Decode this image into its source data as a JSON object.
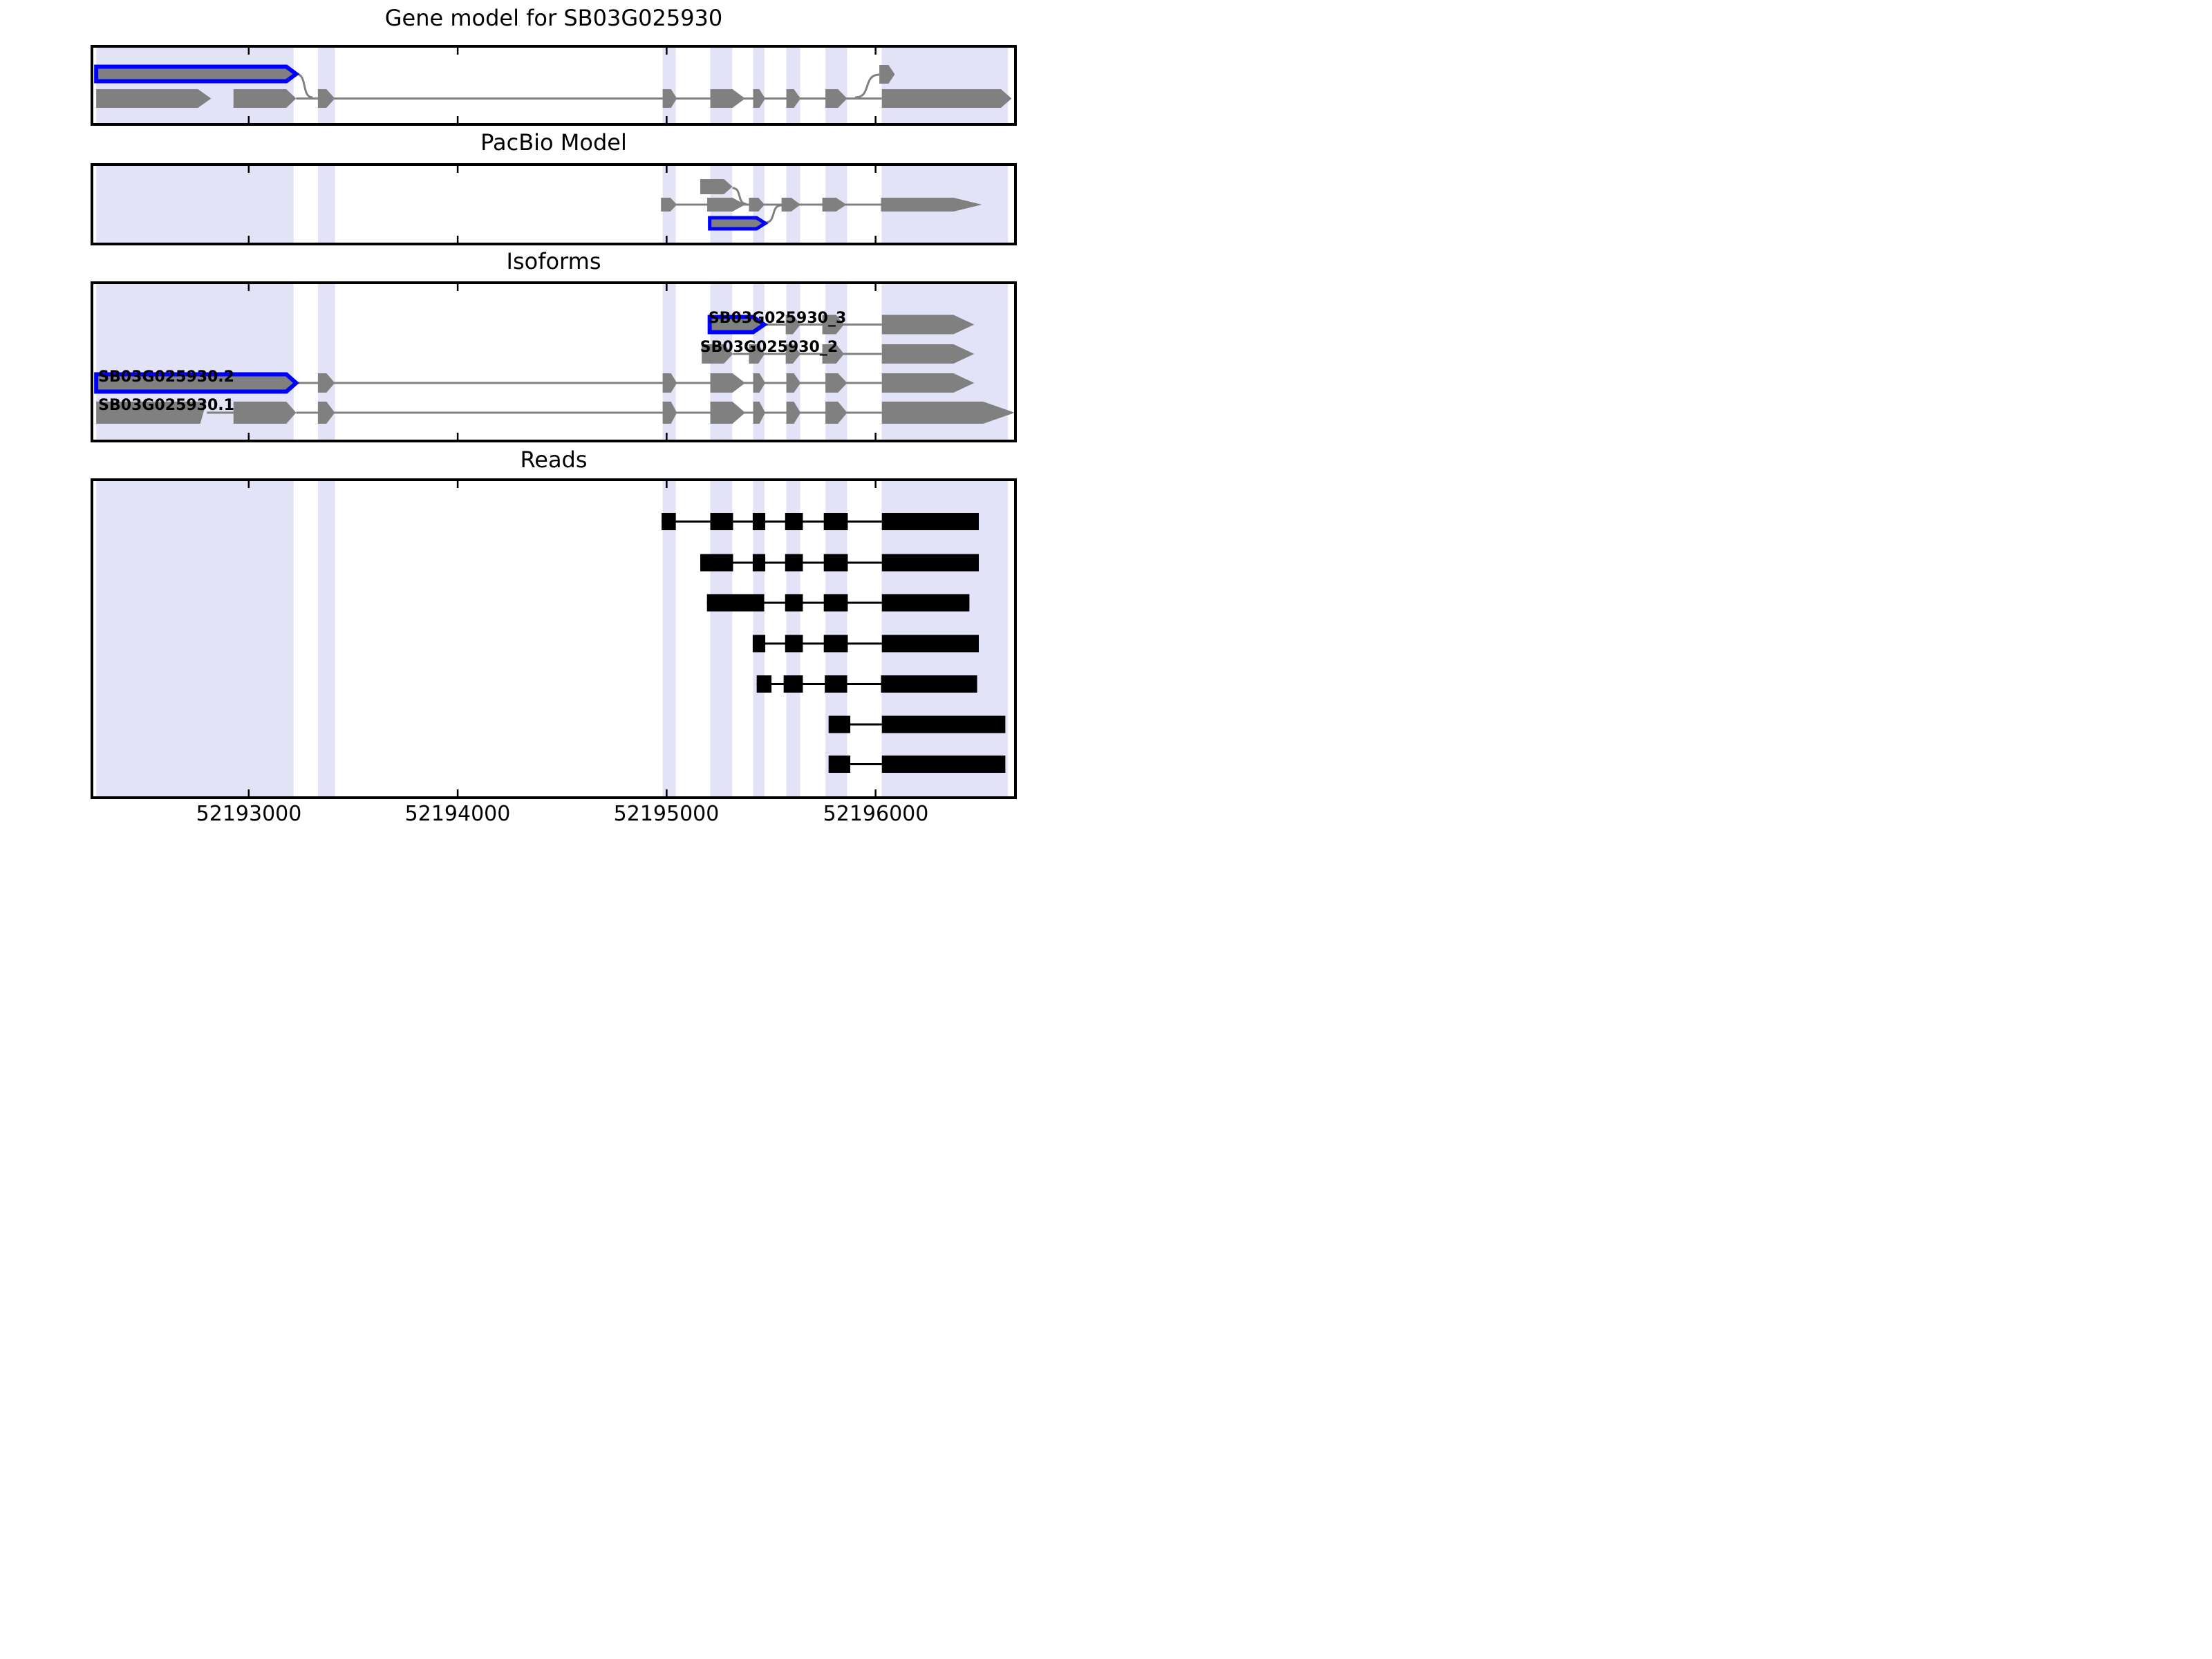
{
  "figure_title": "Gene model for SB03G025930",
  "section_titles": {
    "pacbio": "PacBio Model",
    "isoforms": "Isoforms",
    "reads": "Reads"
  },
  "axis": {
    "tick_labels": [
      "52193000",
      "52194000",
      "52195000",
      "52196000"
    ]
  },
  "colors": {
    "highlight_band": "#e3e3f8",
    "feature_gray": "#808080",
    "accent_blue": "#0000ff",
    "read_black": "#000000",
    "border_black": "#000000"
  },
  "chart_data": {
    "type": "genomic-tracks",
    "title": "Gene model for SB03G025930",
    "x_range": [
      52192243,
      52196676
    ],
    "x_ticks": [
      52193000,
      52194000,
      52195000,
      52196000
    ],
    "highlight_regions": [
      [
        52192270,
        52193215
      ],
      [
        52193331,
        52193413
      ],
      [
        52194981,
        52195044
      ],
      [
        52195209,
        52195314
      ],
      [
        52195414,
        52195468
      ],
      [
        52195573,
        52195639
      ],
      [
        52195760,
        52195864
      ],
      [
        52196029,
        52196634
      ]
    ],
    "panels": [
      {
        "id": "gene-model",
        "curves": [
          {
            "x1": 52193227,
            "y1": 42,
            "x2": 52193306,
            "y2": 76
          },
          {
            "x1": 52195902,
            "y1": 76,
            "x2": 52196018,
            "y2": 43
          }
        ],
        "rows": [
          {
            "cy": 42,
            "h": 21,
            "sw": 6,
            "elements": [
              {
                "t": "pent",
                "a": 52192270,
                "b": 52193180,
                "c": 52193227,
                "s": 1
              }
            ]
          },
          {
            "cy": 42.5,
            "h": 27,
            "elements": [
              {
                "t": "pent",
                "a": 52196018,
                "b": 52196062,
                "c": 52196092
              }
            ]
          },
          {
            "cy": 77.5,
            "h": 27,
            "elements": [
              {
                "t": "line",
                "a": 52193227,
                "b": 52196030
              },
              {
                "t": "pent",
                "a": 52192270,
                "b": 52192757,
                "c": 52192820
              },
              {
                "t": "pent",
                "a": 52192927,
                "b": 52193180,
                "c": 52193227
              },
              {
                "t": "pent",
                "a": 52193331,
                "b": 52193372,
                "c": 52193412
              },
              {
                "t": "pent",
                "a": 52194981,
                "b": 52195021,
                "c": 52195049
              },
              {
                "t": "pent",
                "a": 52195209,
                "b": 52195315,
                "c": 52195376
              },
              {
                "t": "pent",
                "a": 52195414,
                "b": 52195444,
                "c": 52195472
              },
              {
                "t": "pent",
                "a": 52195573,
                "b": 52195609,
                "c": 52195641
              },
              {
                "t": "pent",
                "a": 52195760,
                "b": 52195820,
                "c": 52195864
              },
              {
                "t": "pent",
                "a": 52196030,
                "b": 52196600,
                "c": 52196651
              }
            ]
          }
        ]
      },
      {
        "id": "pacbio",
        "curves": [
          {
            "x1": 52195315,
            "y1": 36,
            "x2": 52195382,
            "y2": 59
          },
          {
            "x1": 52195472,
            "y1": 86,
            "x2": 52195550,
            "y2": 61
          }
        ],
        "rows": [
          {
            "cy": 34,
            "h": 22,
            "elements": [
              {
                "t": "pent",
                "a": 52195161,
                "b": 52195274,
                "c": 52195315
              }
            ]
          },
          {
            "cy": 60,
            "h": 20,
            "elements": [
              {
                "t": "line",
                "a": 52194981,
                "b": 52196030
              },
              {
                "t": "pent",
                "a": 52194973,
                "b": 52195018,
                "c": 52195049
              },
              {
                "t": "pent",
                "a": 52195194,
                "b": 52195315,
                "c": 52195376
              },
              {
                "t": "pent",
                "a": 52195394,
                "b": 52195439,
                "c": 52195469
              },
              {
                "t": "pent",
                "a": 52195550,
                "b": 52195596,
                "c": 52195641
              },
              {
                "t": "pent",
                "a": 52195745,
                "b": 52195811,
                "c": 52195861
              },
              {
                "t": "pent",
                "a": 52196026,
                "b": 52196373,
                "c": 52196509
              }
            ]
          },
          {
            "cy": 87,
            "h": 16,
            "sw": 5,
            "elements": [
              {
                "t": "pent",
                "a": 52195206,
                "b": 52195430,
                "c": 52195472,
                "s": 1
              }
            ]
          }
        ]
      },
      {
        "id": "isoforms",
        "curves": [],
        "rows": [
          {
            "cy": 62.5,
            "h": 28,
            "label": "SB03G025930_3",
            "label_x": 52195200,
            "label_top": 41.5,
            "sw": 6,
            "elements": [
              {
                "t": "line",
                "a": 52195467,
                "b": 52196030
              },
              {
                "t": "pent",
                "a": 52195206,
                "b": 52195414,
                "c": 52195467,
                "s": 1,
                "h": 22
              },
              {
                "t": "pent",
                "a": 52195570,
                "b": 52195604,
                "c": 52195641
              },
              {
                "t": "pent",
                "a": 52195745,
                "b": 52195811,
                "c": 52195849
              },
              {
                "t": "pent",
                "a": 52196030,
                "b": 52196373,
                "c": 52196472
              }
            ]
          },
          {
            "cy": 105,
            "h": 28,
            "label": "SB03G025930_2",
            "label_x": 52195160,
            "label_top": 84,
            "elements": [
              {
                "t": "line",
                "a": 52195318,
                "b": 52196030
              },
              {
                "t": "pent",
                "a": 52195168,
                "b": 52195274,
                "c": 52195318
              },
              {
                "t": "pent",
                "a": 52195394,
                "b": 52195439,
                "c": 52195469
              },
              {
                "t": "pent",
                "a": 52195570,
                "b": 52195604,
                "c": 52195641
              },
              {
                "t": "pent",
                "a": 52195745,
                "b": 52195811,
                "c": 52195849
              },
              {
                "t": "pent",
                "a": 52196030,
                "b": 52196373,
                "c": 52196472
              }
            ]
          },
          {
            "cy": 147,
            "h": 28,
            "label": "SB03G025930.2",
            "label_x": 52192280,
            "label_top": 126.5,
            "sw": 6,
            "elements": [
              {
                "t": "line",
                "a": 52193227,
                "b": 52196030
              },
              {
                "t": "pent",
                "a": 52192270,
                "b": 52193180,
                "c": 52193227,
                "s": 1,
                "h": 25
              },
              {
                "t": "pent",
                "a": 52193331,
                "b": 52193372,
                "c": 52193412
              },
              {
                "t": "pent",
                "a": 52194981,
                "b": 52195021,
                "c": 52195049
              },
              {
                "t": "pent",
                "a": 52195209,
                "b": 52195315,
                "c": 52195376
              },
              {
                "t": "pent",
                "a": 52195414,
                "b": 52195444,
                "c": 52195472
              },
              {
                "t": "pent",
                "a": 52195573,
                "b": 52195609,
                "c": 52195641
              },
              {
                "t": "pent",
                "a": 52195760,
                "b": 52195820,
                "c": 52195864
              },
              {
                "t": "pent",
                "a": 52196030,
                "b": 52196373,
                "c": 52196472
              }
            ]
          },
          {
            "cy": 190,
            "h": 32,
            "label": "SB03G025930.1",
            "label_x": 52192280,
            "label_top": 167.5,
            "elements": [
              {
                "t": "line",
                "a": 52192800,
                "b": 52192930
              },
              {
                "t": "line",
                "a": 52193227,
                "b": 52196030
              },
              {
                "t": "slant",
                "a": 52192270,
                "bt": 52192798,
                "bb": 52192768
              },
              {
                "t": "pent",
                "a": 52192927,
                "b": 52193180,
                "c": 52193227
              },
              {
                "t": "pent",
                "a": 52193331,
                "b": 52193372,
                "c": 52193412
              },
              {
                "t": "pent",
                "a": 52194981,
                "b": 52195021,
                "c": 52195049
              },
              {
                "t": "pent",
                "a": 52195209,
                "b": 52195315,
                "c": 52195376
              },
              {
                "t": "pent",
                "a": 52195414,
                "b": 52195444,
                "c": 52195472
              },
              {
                "t": "pent",
                "a": 52195573,
                "b": 52195609,
                "c": 52195641
              },
              {
                "t": "pent",
                "a": 52195760,
                "b": 52195820,
                "c": 52195864
              },
              {
                "t": "pent",
                "a": 52196030,
                "b": 52196515,
                "c": 52196666
              }
            ]
          }
        ]
      },
      {
        "id": "reads",
        "curves": [],
        "rows": [
          {
            "cy": 62.5,
            "h": 25,
            "fill": "#000000",
            "elements": [
              {
                "t": "line",
                "a": 52194976,
                "b": 52196030
              },
              {
                "t": "rect",
                "a": 52194976,
                "b": 52195044
              },
              {
                "t": "rect",
                "a": 52195209,
                "b": 52195318
              },
              {
                "t": "rect",
                "a": 52195412,
                "b": 52195472
              },
              {
                "t": "rect",
                "a": 52195567,
                "b": 52195652
              },
              {
                "t": "rect",
                "a": 52195752,
                "b": 52195867
              },
              {
                "t": "rect",
                "a": 52196030,
                "b": 52196494
              }
            ]
          },
          {
            "cy": 122,
            "h": 25,
            "fill": "#000000",
            "elements": [
              {
                "t": "line",
                "a": 52195161,
                "b": 52196030
              },
              {
                "t": "rect",
                "a": 52195161,
                "b": 52195318
              },
              {
                "t": "rect",
                "a": 52195412,
                "b": 52195472
              },
              {
                "t": "rect",
                "a": 52195567,
                "b": 52195652
              },
              {
                "t": "rect",
                "a": 52195752,
                "b": 52195867
              },
              {
                "t": "rect",
                "a": 52196030,
                "b": 52196494
              }
            ]
          },
          {
            "cy": 180,
            "h": 25,
            "fill": "#000000",
            "elements": [
              {
                "t": "line",
                "a": 52195193,
                "b": 52196030
              },
              {
                "t": "rect",
                "a": 52195193,
                "b": 52195467
              },
              {
                "t": "rect",
                "a": 52195567,
                "b": 52195652
              },
              {
                "t": "rect",
                "a": 52195752,
                "b": 52195867
              },
              {
                "t": "rect",
                "a": 52196030,
                "b": 52196449
              }
            ]
          },
          {
            "cy": 239,
            "h": 25,
            "fill": "#000000",
            "elements": [
              {
                "t": "line",
                "a": 52195412,
                "b": 52196030
              },
              {
                "t": "rect",
                "a": 52195412,
                "b": 52195472
              },
              {
                "t": "rect",
                "a": 52195567,
                "b": 52195652
              },
              {
                "t": "rect",
                "a": 52195752,
                "b": 52195867
              },
              {
                "t": "rect",
                "a": 52196030,
                "b": 52196494
              }
            ]
          },
          {
            "cy": 297.5,
            "h": 25,
            "fill": "#000000",
            "elements": [
              {
                "t": "line",
                "a": 52195431,
                "b": 52196026
              },
              {
                "t": "rect",
                "a": 52195431,
                "b": 52195502
              },
              {
                "t": "rect",
                "a": 52195560,
                "b": 52195652
              },
              {
                "t": "rect",
                "a": 52195757,
                "b": 52195864
              },
              {
                "t": "rect",
                "a": 52196026,
                "b": 52196486
              }
            ]
          },
          {
            "cy": 356,
            "h": 25,
            "fill": "#000000",
            "elements": [
              {
                "t": "line",
                "a": 52195879,
                "b": 52196030
              },
              {
                "t": "rect",
                "a": 52195775,
                "b": 52195879
              },
              {
                "t": "rect",
                "a": 52196030,
                "b": 52196621
              }
            ]
          },
          {
            "cy": 413.5,
            "h": 25,
            "fill": "#000000",
            "elements": [
              {
                "t": "line",
                "a": 52195879,
                "b": 52196030
              },
              {
                "t": "rect",
                "a": 52195775,
                "b": 52195879
              },
              {
                "t": "rect",
                "a": 52196030,
                "b": 52196621
              }
            ]
          }
        ]
      }
    ]
  }
}
